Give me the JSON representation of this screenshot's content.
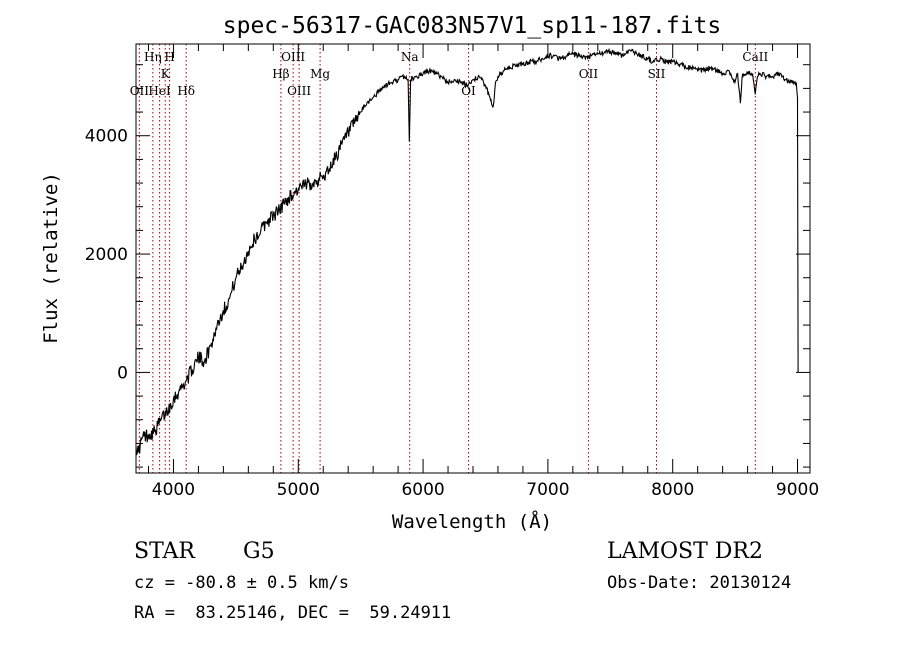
{
  "chart_data": {
    "type": "line",
    "title": "spec-56317-GAC083N57V1_sp11-187.fits",
    "xlabel": "Wavelength (Å)",
    "ylabel": "Flux (relative)",
    "xlim": [
      3700,
      9100
    ],
    "ylim": [
      -1700,
      5550
    ],
    "x_ticks": [
      4000,
      5000,
      6000,
      7000,
      8000,
      9000
    ],
    "x_tick_labels": [
      "4000",
      "5000",
      "6000",
      "7000",
      "8000",
      "9000"
    ],
    "y_ticks": [
      0,
      2000,
      4000
    ],
    "y_tick_labels": [
      "0",
      "2000",
      "4000"
    ],
    "grid": false,
    "line_color": "#000000",
    "marker_color": "#aa0000",
    "series": [
      {
        "values": [
          [
            3700,
            -1250
          ],
          [
            3720,
            -1350
          ],
          [
            3750,
            -1100
          ],
          [
            3800,
            -1050
          ],
          [
            3850,
            -1000
          ],
          [
            3900,
            -800
          ],
          [
            3950,
            -650
          ],
          [
            4000,
            -450
          ],
          [
            4050,
            -300
          ],
          [
            4100,
            -150
          ],
          [
            4150,
            50
          ],
          [
            4200,
            250
          ],
          [
            4250,
            200
          ],
          [
            4300,
            450
          ],
          [
            4350,
            800
          ],
          [
            4400,
            1050
          ],
          [
            4450,
            1250
          ],
          [
            4500,
            1600
          ],
          [
            4550,
            1800
          ],
          [
            4600,
            2050
          ],
          [
            4650,
            2250
          ],
          [
            4700,
            2400
          ],
          [
            4750,
            2550
          ],
          [
            4800,
            2650
          ],
          [
            4850,
            2750
          ],
          [
            4900,
            2900
          ],
          [
            4950,
            3000
          ],
          [
            5000,
            3100
          ],
          [
            5050,
            3150
          ],
          [
            5100,
            3200
          ],
          [
            5150,
            3250
          ],
          [
            5200,
            3300
          ],
          [
            5250,
            3450
          ],
          [
            5300,
            3650
          ],
          [
            5350,
            3850
          ],
          [
            5400,
            4050
          ],
          [
            5450,
            4200
          ],
          [
            5500,
            4400
          ],
          [
            5550,
            4550
          ],
          [
            5600,
            4650
          ],
          [
            5650,
            4750
          ],
          [
            5700,
            4850
          ],
          [
            5750,
            4900
          ],
          [
            5800,
            4950
          ],
          [
            5850,
            5000
          ],
          [
            5880,
            4950
          ],
          [
            5890,
            3900
          ],
          [
            5900,
            4950
          ],
          [
            5950,
            5000
          ],
          [
            6000,
            5050
          ],
          [
            6050,
            5100
          ],
          [
            6100,
            5050
          ],
          [
            6150,
            5000
          ],
          [
            6200,
            4900
          ],
          [
            6250,
            4950
          ],
          [
            6300,
            4900
          ],
          [
            6350,
            4850
          ],
          [
            6400,
            4950
          ],
          [
            6450,
            5000
          ],
          [
            6500,
            4850
          ],
          [
            6540,
            4600
          ],
          [
            6563,
            4500
          ],
          [
            6580,
            4900
          ],
          [
            6600,
            5000
          ],
          [
            6650,
            5100
          ],
          [
            6700,
            5150
          ],
          [
            6750,
            5200
          ],
          [
            6800,
            5200
          ],
          [
            6850,
            5250
          ],
          [
            6900,
            5250
          ],
          [
            6950,
            5300
          ],
          [
            7000,
            5350
          ],
          [
            7050,
            5350
          ],
          [
            7100,
            5300
          ],
          [
            7150,
            5350
          ],
          [
            7200,
            5380
          ],
          [
            7250,
            5350
          ],
          [
            7300,
            5300
          ],
          [
            7350,
            5350
          ],
          [
            7400,
            5380
          ],
          [
            7450,
            5400
          ],
          [
            7500,
            5420
          ],
          [
            7550,
            5400
          ],
          [
            7600,
            5350
          ],
          [
            7650,
            5450
          ],
          [
            7700,
            5400
          ],
          [
            7750,
            5350
          ],
          [
            7800,
            5300
          ],
          [
            7850,
            5250
          ],
          [
            7900,
            5300
          ],
          [
            7950,
            5250
          ],
          [
            8000,
            5250
          ],
          [
            8050,
            5200
          ],
          [
            8100,
            5180
          ],
          [
            8150,
            5150
          ],
          [
            8200,
            5100
          ],
          [
            8250,
            5100
          ],
          [
            8300,
            5150
          ],
          [
            8350,
            5100
          ],
          [
            8400,
            5050
          ],
          [
            8450,
            5100
          ],
          [
            8498,
            4900
          ],
          [
            8520,
            5050
          ],
          [
            8542,
            4550
          ],
          [
            8560,
            5050
          ],
          [
            8600,
            5050
          ],
          [
            8640,
            5050
          ],
          [
            8662,
            4700
          ],
          [
            8680,
            5000
          ],
          [
            8700,
            5050
          ],
          [
            8750,
            5000
          ],
          [
            8800,
            5000
          ],
          [
            8850,
            5050
          ],
          [
            8900,
            4950
          ],
          [
            8950,
            4900
          ],
          [
            8990,
            4900
          ],
          [
            9000,
            4650
          ],
          [
            9005,
            0
          ]
        ]
      }
    ],
    "line_markers": [
      {
        "label": "OII",
        "wavelength": 3727,
        "row": 3
      },
      {
        "label": "Hη",
        "wavelength": 3835,
        "row": 1
      },
      {
        "label": "HeI",
        "wavelength": 3889,
        "row": 3
      },
      {
        "label": "K",
        "wavelength": 3934,
        "row": 2
      },
      {
        "label": "H",
        "wavelength": 3969,
        "row": 1
      },
      {
        "label": "Hδ",
        "wavelength": 4102,
        "row": 3
      },
      {
        "label": "Hβ",
        "wavelength": 4861,
        "row": 2
      },
      {
        "label": "OIII",
        "wavelength": 4959,
        "row": 1
      },
      {
        "label": "OIII",
        "wavelength": 5007,
        "row": 3
      },
      {
        "label": "Mg",
        "wavelength": 5175,
        "row": 2
      },
      {
        "label": "Na",
        "wavelength": 5893,
        "row": 1
      },
      {
        "label": "OI",
        "wavelength": 6364,
        "row": 3
      },
      {
        "label": "OII",
        "wavelength": 7325,
        "row": 2
      },
      {
        "label": "SII",
        "wavelength": 7870,
        "row": 2
      },
      {
        "label": "CaII",
        "wavelength": 8662,
        "row": 1
      }
    ]
  },
  "info": {
    "object_class": "STAR",
    "subclass": "G5",
    "survey": "LAMOST DR2",
    "redshift": "cz = -80.8 ± 0.5 km/s",
    "obs_date": "Obs-Date: 20130124",
    "coords": "RA =  83.25146, DEC =  59.24911"
  }
}
